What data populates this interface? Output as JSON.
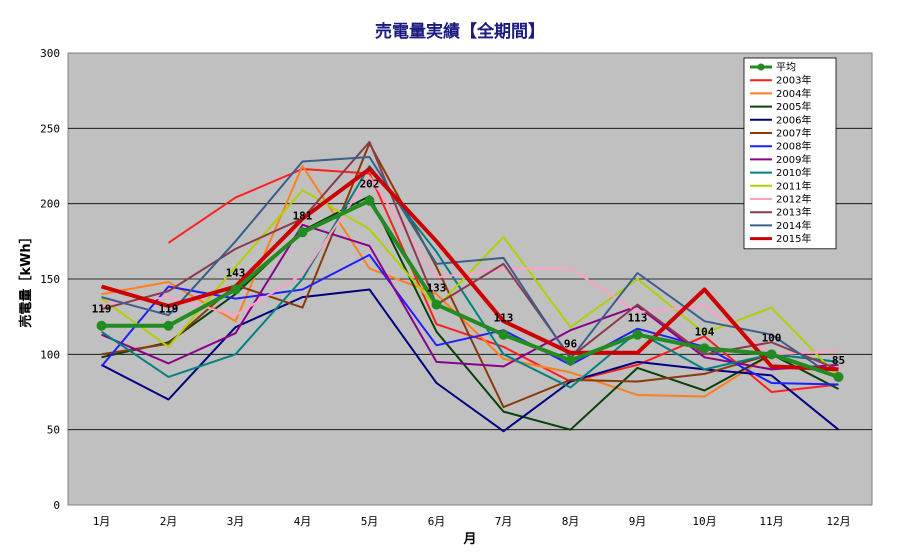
{
  "chart_data": {
    "type": "line",
    "title": "売電量実績【全期間】",
    "xlabel": "月",
    "ylabel": "売電量［kWh］",
    "ylim": [
      0,
      300
    ],
    "yticks": [
      0,
      50,
      100,
      150,
      200,
      250,
      300
    ],
    "categories": [
      "1月",
      "2月",
      "3月",
      "4月",
      "5月",
      "6月",
      "7月",
      "8月",
      "9月",
      "10月",
      "11月",
      "12月"
    ],
    "grid": true,
    "legend_position": "top-right",
    "background_color": "#c0c0c0",
    "series": [
      {
        "name": "平均",
        "color": "#228b22",
        "width": 4,
        "marker": true,
        "labels": true,
        "values": [
          119,
          119,
          143,
          181,
          202,
          133,
          113,
          96,
          113,
          104,
          100,
          85
        ]
      },
      {
        "name": "2003年",
        "color": "#ff1f1f",
        "width": 2,
        "values": [
          null,
          174,
          204,
          223,
          220,
          120,
          105,
          82,
          93,
          112,
          75,
          80
        ]
      },
      {
        "name": "2004年",
        "color": "#ff7f1f",
        "width": 2,
        "values": [
          140,
          148,
          122,
          225,
          157,
          140,
          97,
          88,
          73,
          72,
          100,
          85
        ]
      },
      {
        "name": "2005年",
        "color": "#0a400a",
        "width": 2,
        "values": [
          98,
          108,
          140,
          182,
          205,
          115,
          62,
          50,
          91,
          76,
          100,
          77
        ]
      },
      {
        "name": "2006年",
        "color": "#000080",
        "width": 2,
        "values": [
          93,
          70,
          118,
          138,
          143,
          81,
          49,
          82,
          95,
          90,
          86,
          50
        ]
      },
      {
        "name": "2007年",
        "color": "#8b3a0a",
        "width": 2,
        "values": [
          100,
          107,
          146,
          131,
          240,
          158,
          65,
          83,
          82,
          87,
          100,
          95
        ]
      },
      {
        "name": "2008年",
        "color": "#1f1fff",
        "width": 2,
        "values": [
          92,
          145,
          137,
          143,
          166,
          106,
          116,
          93,
          117,
          105,
          81,
          80
        ]
      },
      {
        "name": "2009年",
        "color": "#8b008b",
        "width": 2,
        "values": [
          113,
          94,
          114,
          186,
          172,
          95,
          92,
          116,
          132,
          98,
          90,
          93
        ]
      },
      {
        "name": "2010年",
        "color": "#008080",
        "width": 2,
        "values": [
          115,
          85,
          100,
          150,
          225,
          168,
          100,
          78,
          115,
          90,
          100,
          95
        ]
      },
      {
        "name": "2011年",
        "color": "#b0d000",
        "width": 2,
        "values": [
          137,
          105,
          158,
          209,
          183,
          131,
          178,
          118,
          150,
          114,
          131,
          85
        ]
      },
      {
        "name": "2012年",
        "color": "#ffa0c8",
        "width": 2,
        "values": [
          133,
          138,
          126,
          153,
          218,
          151,
          157,
          157,
          128,
          132,
          100,
          102
        ]
      },
      {
        "name": "2013年",
        "color": "#8b3a50",
        "width": 2,
        "values": [
          130,
          142,
          170,
          190,
          241,
          133,
          160,
          98,
          133,
          100,
          108,
          90
        ]
      },
      {
        "name": "2014年",
        "color": "#3a5f8b",
        "width": 2,
        "values": [
          138,
          126,
          175,
          228,
          231,
          160,
          164,
          97,
          154,
          122,
          113,
          83
        ]
      },
      {
        "name": "2015年",
        "color": "#cc0000",
        "width": 4,
        "values": [
          145,
          132,
          145,
          190,
          223,
          175,
          122,
          101,
          101,
          143,
          92,
          90
        ]
      }
    ]
  }
}
